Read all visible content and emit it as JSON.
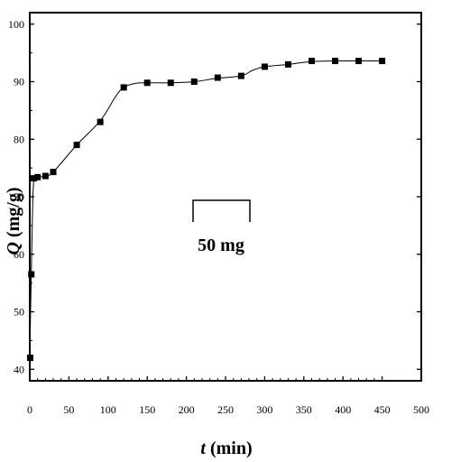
{
  "chart_data": {
    "type": "scatter",
    "xlabel_var": "t",
    "xlabel_unit": "(min)",
    "ylabel_var": "Q",
    "ylabel_unit": "(mg/g)",
    "xlim": [
      0,
      500
    ],
    "ylim": [
      38,
      102
    ],
    "x_ticks": [
      "0",
      "50",
      "100",
      "150",
      "200",
      "250",
      "300",
      "350",
      "400",
      "450",
      "500"
    ],
    "y_ticks": [
      {
        "value": 40,
        "label": "40"
      },
      {
        "value": 50,
        "label": "50"
      },
      {
        "value": 60,
        "label": "60"
      },
      {
        "value": 70,
        "label": "70"
      },
      {
        "value": 80,
        "label": "80"
      },
      {
        "value": 90,
        "label": "90"
      },
      {
        "value": 100,
        "label": "100"
      }
    ],
    "grid": false,
    "annotation": "50 mg",
    "marker_color": "#000000",
    "line_color": "#000000",
    "series": [
      {
        "marker": "square",
        "points": [
          [
            0.5,
            42
          ],
          [
            2,
            56.5
          ],
          [
            5,
            73.2
          ],
          [
            10,
            73.4
          ],
          [
            20,
            73.6
          ],
          [
            30,
            74.3
          ],
          [
            60,
            79
          ],
          [
            90,
            83
          ],
          [
            120,
            89
          ],
          [
            150,
            89.8
          ],
          [
            180,
            89.8
          ],
          [
            210,
            90
          ],
          [
            240,
            90.7
          ],
          [
            270,
            91
          ],
          [
            300,
            92.6
          ],
          [
            330,
            93
          ],
          [
            360,
            93.6
          ],
          [
            390,
            93.6
          ],
          [
            420,
            93.6
          ],
          [
            450,
            93.6
          ]
        ]
      }
    ],
    "fit_curve": [
      [
        0,
        41.5
      ],
      [
        1,
        50
      ],
      [
        2,
        57
      ],
      [
        3,
        64
      ],
      [
        4,
        70
      ],
      [
        5,
        72.5
      ],
      [
        7,
        73.2
      ],
      [
        10,
        73.4
      ],
      [
        20,
        73.6
      ],
      [
        30,
        74.3
      ],
      [
        60,
        79
      ],
      [
        90,
        83.2
      ],
      [
        110,
        87.5
      ],
      [
        120,
        89
      ],
      [
        135,
        89.7
      ],
      [
        150,
        89.8
      ],
      [
        180,
        89.8
      ],
      [
        210,
        90
      ],
      [
        240,
        90.6
      ],
      [
        270,
        91
      ],
      [
        285,
        92
      ],
      [
        300,
        92.6
      ],
      [
        330,
        93
      ],
      [
        360,
        93.5
      ],
      [
        390,
        93.6
      ],
      [
        420,
        93.6
      ],
      [
        450,
        93.6
      ]
    ]
  }
}
